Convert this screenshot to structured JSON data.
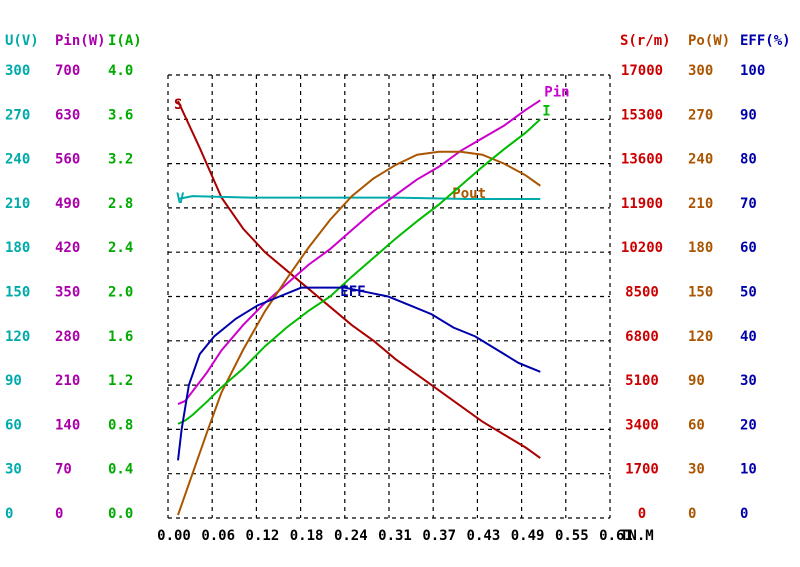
{
  "chart_data": {
    "type": "line",
    "xlabel": "TN.M",
    "x_ticks": [
      "0.00",
      "0.06",
      "0.12",
      "0.18",
      "0.24",
      "0.31",
      "0.37",
      "0.43",
      "0.49",
      "0.55",
      "0.61"
    ],
    "xlim": [
      0,
      0.61
    ],
    "grid": true,
    "left_axes": [
      {
        "header": "U(V)",
        "color": "#00aaaa",
        "ticks": [
          "300",
          "270",
          "240",
          "210",
          "180",
          "150",
          "120",
          "90",
          "60",
          "30",
          "0"
        ]
      },
      {
        "header": "Pin(W)",
        "color": "#aa00aa",
        "ticks": [
          "700",
          "630",
          "560",
          "490",
          "420",
          "350",
          "280",
          "210",
          "140",
          "70",
          "0"
        ]
      },
      {
        "header": "I(A)",
        "color": "#00aa00",
        "ticks": [
          "4.0",
          "3.6",
          "3.2",
          "2.8",
          "2.4",
          "2.0",
          "1.6",
          "1.2",
          "0.8",
          "0.4",
          "0.0"
        ]
      }
    ],
    "right_axes": [
      {
        "header": "S(r/m)",
        "color": "#cc0000",
        "ticks": [
          "17000",
          "15300",
          "13600",
          "11900",
          "10200",
          "8500",
          "6800",
          "5100",
          "3400",
          "1700",
          "0"
        ]
      },
      {
        "header": "Po(W)",
        "color": "#aa5500",
        "ticks": [
          "300",
          "270",
          "240",
          "210",
          "180",
          "150",
          "120",
          "90",
          "60",
          "30",
          "0"
        ]
      },
      {
        "header": "EFF(%)",
        "color": "#0000aa",
        "ticks": [
          "100",
          "90",
          "80",
          "70",
          "60",
          "50",
          "40",
          "30",
          "20",
          "10",
          "0"
        ]
      }
    ],
    "series": [
      {
        "name": "S",
        "color": "#aa0000",
        "axis": "S(r/m)",
        "x": [
          0.0,
          0.03,
          0.06,
          0.09,
          0.12,
          0.15,
          0.18,
          0.21,
          0.24,
          0.27,
          0.3,
          0.33,
          0.36,
          0.39,
          0.42,
          0.45,
          0.48,
          0.5
        ],
        "y": [
          16000,
          14200,
          12300,
          11100,
          10200,
          9500,
          8800,
          8100,
          7400,
          6800,
          6100,
          5500,
          4900,
          4300,
          3700,
          3200,
          2700,
          2300
        ]
      },
      {
        "name": "V",
        "color": "#00aaaa",
        "axis": "U(V)",
        "x": [
          0.0,
          0.02,
          0.1,
          0.2,
          0.3,
          0.4,
          0.5
        ],
        "y": [
          216,
          218,
          217,
          217,
          217,
          216,
          216
        ]
      },
      {
        "name": "Pin",
        "color": "#cc00cc",
        "axis": "Pin(W)",
        "x": [
          0.0,
          0.01,
          0.02,
          0.04,
          0.06,
          0.09,
          0.12,
          0.15,
          0.18,
          0.21,
          0.24,
          0.27,
          0.3,
          0.33,
          0.36,
          0.39,
          0.42,
          0.45,
          0.48,
          0.5
        ],
        "y": [
          180,
          185,
          200,
          230,
          265,
          305,
          340,
          370,
          400,
          425,
          455,
          485,
          510,
          535,
          555,
          580,
          600,
          620,
          645,
          660
        ]
      },
      {
        "name": "Pout",
        "color": "#aa5500",
        "axis": "Po(W)",
        "x": [
          0.0,
          0.02,
          0.04,
          0.06,
          0.09,
          0.12,
          0.15,
          0.18,
          0.21,
          0.24,
          0.27,
          0.3,
          0.33,
          0.36,
          0.39,
          0.42,
          0.45,
          0.48,
          0.5
        ],
        "y": [
          2,
          30,
          58,
          85,
          114,
          140,
          162,
          183,
          202,
          218,
          230,
          239,
          246,
          248,
          248,
          246,
          240,
          232,
          225
        ]
      },
      {
        "name": "I",
        "color": "#00bb00",
        "axis": "I(A)",
        "x": [
          0.0,
          0.01,
          0.02,
          0.04,
          0.06,
          0.09,
          0.12,
          0.15,
          0.18,
          0.21,
          0.24,
          0.27,
          0.3,
          0.33,
          0.36,
          0.39,
          0.42,
          0.45,
          0.48,
          0.5
        ],
        "y": [
          0.85,
          0.88,
          0.93,
          1.05,
          1.18,
          1.35,
          1.55,
          1.72,
          1.87,
          2.0,
          2.18,
          2.35,
          2.52,
          2.68,
          2.83,
          3.0,
          3.17,
          3.33,
          3.48,
          3.6
        ]
      },
      {
        "name": "EFF",
        "color": "#0000aa",
        "axis": "EFF(%)",
        "x": [
          0.0,
          0.005,
          0.015,
          0.03,
          0.05,
          0.08,
          0.11,
          0.14,
          0.17,
          0.2,
          0.23,
          0.26,
          0.29,
          0.32,
          0.35,
          0.38,
          0.41,
          0.44,
          0.47,
          0.5
        ],
        "y": [
          13,
          20,
          30,
          37,
          41,
          45,
          48,
          50,
          52,
          52,
          52,
          51,
          50,
          48,
          46,
          43,
          41,
          38,
          35,
          33
        ]
      }
    ]
  }
}
